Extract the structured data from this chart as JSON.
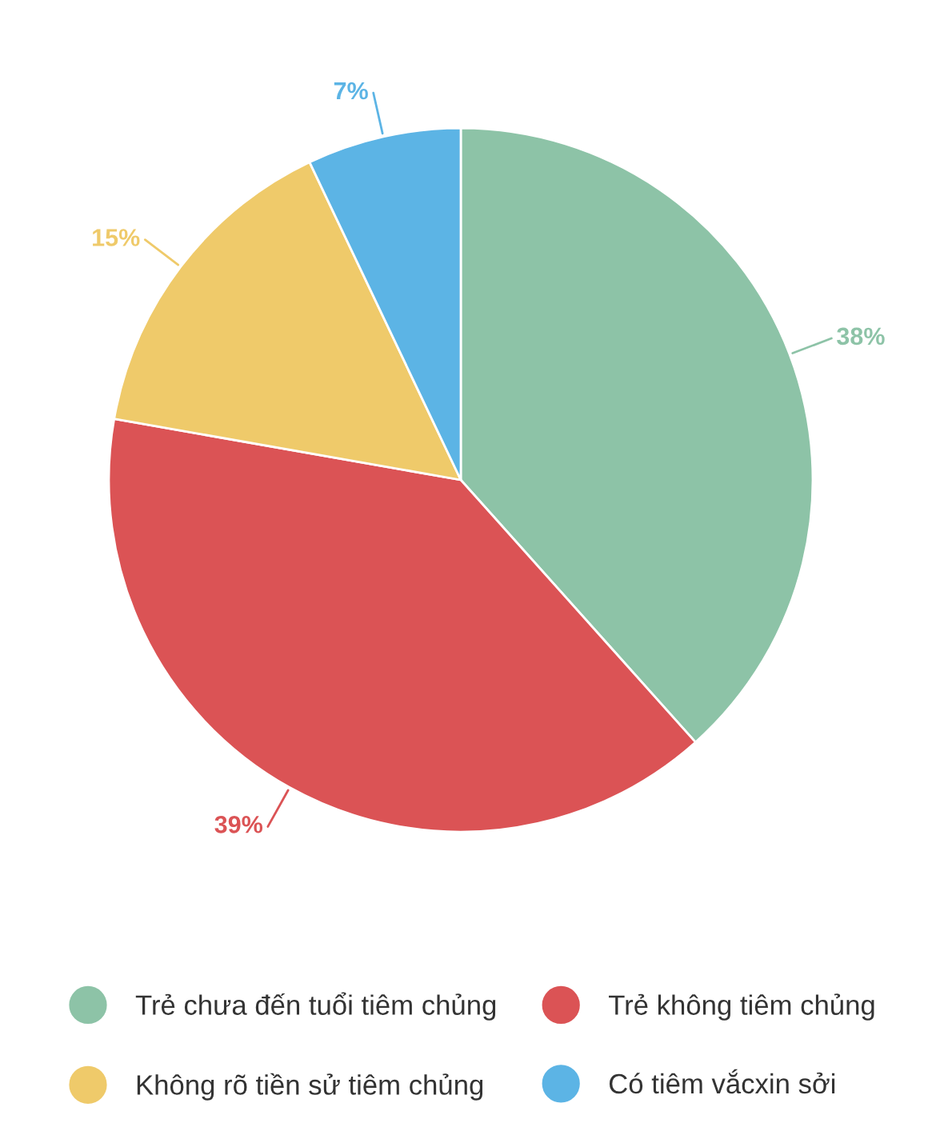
{
  "chart_data": {
    "type": "pie",
    "categories": [
      "Trẻ chưa đến tuổi tiêm chủng",
      "Trẻ không tiêm chủng",
      "Không rõ tiền sử tiêm chủng",
      "Có tiêm vắcxin sởi"
    ],
    "values": [
      38,
      39,
      15,
      7
    ],
    "colors": [
      "#8dc3a7",
      "#db5355",
      "#efca6a",
      "#5cb4e5"
    ],
    "value_labels": [
      "38%",
      "39%",
      "15%",
      "7%"
    ],
    "legend": "bottom"
  }
}
